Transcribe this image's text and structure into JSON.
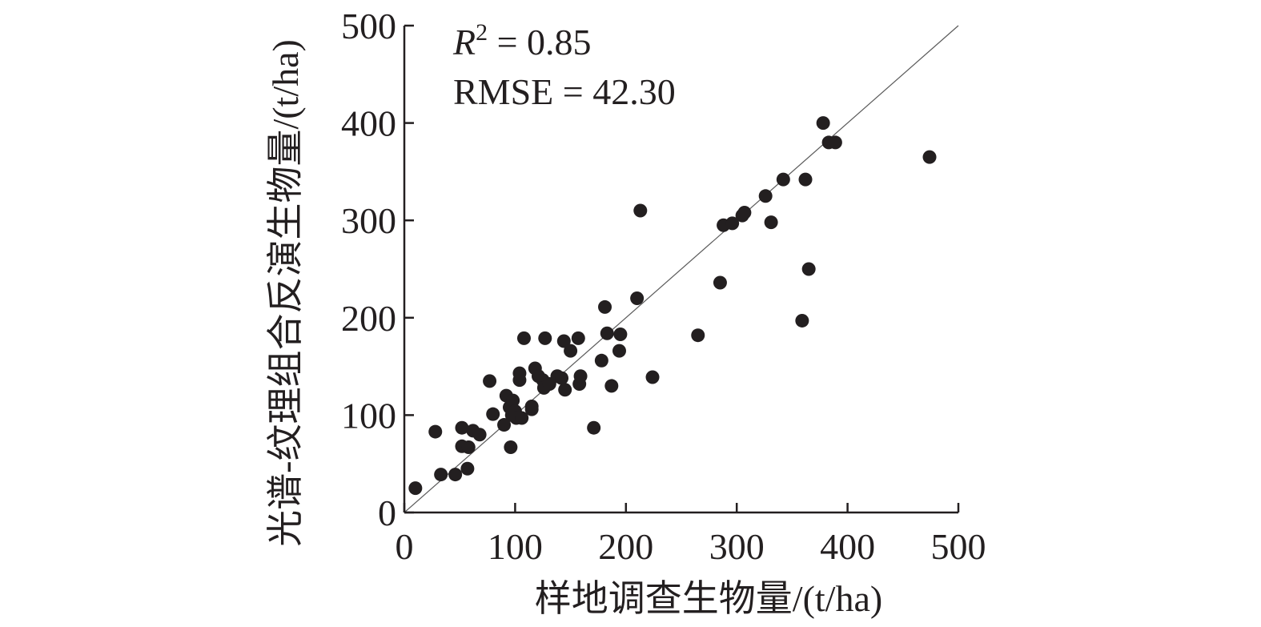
{
  "chart_data": {
    "type": "scatter",
    "title": "",
    "xlabel": "样地调查生物量/(t/ha)",
    "ylabel": "光谱-纹理组合反演生物量/(t/ha)",
    "xlim": [
      0,
      500
    ],
    "ylim": [
      0,
      500
    ],
    "xticks": [
      "0",
      "100",
      "200",
      "300",
      "400",
      "500"
    ],
    "yticks": [
      "0",
      "100",
      "200",
      "300",
      "400",
      "500"
    ],
    "grid": false,
    "reference_line": {
      "name": "1:1",
      "from": [
        0,
        0
      ],
      "to": [
        500,
        500
      ]
    },
    "annotations": {
      "r2_symbol": "R",
      "r2_exponent": "2",
      "r2_value": " = 0.85",
      "rmse": "RMSE = 42.30"
    },
    "colors": {
      "points": "#231f20",
      "axis": "#231f20",
      "reference": "#5a5a5a"
    },
    "series": [
      {
        "name": "samples",
        "points": [
          [
            10,
            25
          ],
          [
            28,
            83
          ],
          [
            33,
            39
          ],
          [
            46,
            39
          ],
          [
            52,
            87
          ],
          [
            52,
            68
          ],
          [
            57,
            45
          ],
          [
            58,
            67
          ],
          [
            62,
            84
          ],
          [
            68,
            80
          ],
          [
            77,
            135
          ],
          [
            80,
            101
          ],
          [
            90,
            90
          ],
          [
            92,
            120
          ],
          [
            95,
            108
          ],
          [
            96,
            67
          ],
          [
            97,
            100
          ],
          [
            98,
            115
          ],
          [
            100,
            104
          ],
          [
            101,
            97
          ],
          [
            104,
            136
          ],
          [
            104,
            143
          ],
          [
            106,
            97
          ],
          [
            108,
            179
          ],
          [
            115,
            106
          ],
          [
            115,
            109
          ],
          [
            118,
            148
          ],
          [
            121,
            140
          ],
          [
            125,
            136
          ],
          [
            126,
            128
          ],
          [
            127,
            179
          ],
          [
            131,
            132
          ],
          [
            138,
            140
          ],
          [
            142,
            138
          ],
          [
            144,
            176
          ],
          [
            145,
            126
          ],
          [
            150,
            166
          ],
          [
            157,
            179
          ],
          [
            158,
            132
          ],
          [
            159,
            140
          ],
          [
            171,
            87
          ],
          [
            178,
            156
          ],
          [
            181,
            211
          ],
          [
            183,
            184
          ],
          [
            187,
            130
          ],
          [
            194,
            166
          ],
          [
            195,
            183
          ],
          [
            210,
            220
          ],
          [
            213,
            310
          ],
          [
            224,
            139
          ],
          [
            265,
            182
          ],
          [
            285,
            236
          ],
          [
            288,
            295
          ],
          [
            296,
            297
          ],
          [
            305,
            305
          ],
          [
            307,
            308
          ],
          [
            326,
            325
          ],
          [
            331,
            298
          ],
          [
            342,
            342
          ],
          [
            359,
            197
          ],
          [
            362,
            342
          ],
          [
            365,
            250
          ],
          [
            378,
            400
          ],
          [
            383,
            380
          ],
          [
            389,
            380
          ],
          [
            474,
            365
          ]
        ]
      }
    ]
  }
}
